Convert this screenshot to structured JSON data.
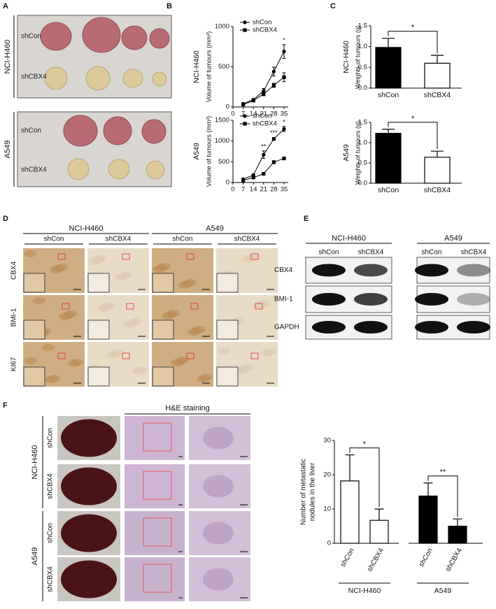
{
  "panels": {
    "A": "A",
    "B": "B",
    "C": "C",
    "D": "D",
    "E": "E",
    "F": "F"
  },
  "panel_a": {
    "rows": [
      {
        "cell": "NCI-H460",
        "groups": [
          "shCon",
          "shCBX4"
        ]
      },
      {
        "cell": "A549",
        "groups": [
          "shCon",
          "shCBX4"
        ]
      }
    ]
  },
  "panel_d": {
    "cells": [
      "NCI-H460",
      "A549"
    ],
    "groups": [
      "shCon",
      "shCBX4",
      "shCon",
      "shCBX4"
    ],
    "markers": [
      "CBX4",
      "BMI-1",
      "KI67"
    ]
  },
  "panel_e": {
    "cells": [
      "NCI-H460",
      "A549"
    ],
    "groups": [
      "shCon",
      "shCBX4",
      "shCon",
      "shCBX4"
    ],
    "proteins": [
      "CBX4",
      "BMI-1",
      "GAPDH"
    ]
  },
  "panel_f": {
    "stain": "H&E staining",
    "rows": [
      {
        "cell": "NCI-H460",
        "groups": [
          "shCon",
          "shCBX4"
        ]
      },
      {
        "cell": "A549",
        "groups": [
          "shCon",
          "shCBX4"
        ]
      }
    ]
  },
  "chart_data": [
    {
      "type": "line",
      "row_label": "NCI-H460",
      "ylabel": "Volume of tumours (mm³)",
      "x": [
        7,
        14,
        21,
        28,
        35
      ],
      "xlim": [
        0,
        35
      ],
      "xticks": [
        0,
        7,
        14,
        21,
        28,
        35
      ],
      "ylim": [
        0,
        1000
      ],
      "yticks": [
        0,
        500,
        1000
      ],
      "series": [
        {
          "name": "shCon",
          "marker": "circle",
          "color": "#000000",
          "values": [
            40,
            90,
            200,
            440,
            690
          ],
          "errors": [
            8,
            12,
            30,
            55,
            85
          ]
        },
        {
          "name": "shCBX4",
          "marker": "square",
          "color": "#000000",
          "values": [
            30,
            80,
            160,
            270,
            370
          ],
          "errors": [
            5,
            10,
            20,
            25,
            55
          ]
        }
      ],
      "annotations": [
        {
          "x": 35,
          "label": "*"
        }
      ]
    },
    {
      "type": "line",
      "row_label": "A549",
      "ylabel": "Volume of tumours (mm³)",
      "x": [
        7,
        14,
        21,
        28,
        35
      ],
      "xlim": [
        0,
        35
      ],
      "xticks": [
        0,
        7,
        14,
        21,
        28,
        35
      ],
      "ylim": [
        0,
        1500
      ],
      "yticks": [
        0,
        500,
        1000,
        1500
      ],
      "series": [
        {
          "name": "shCon",
          "marker": "circle",
          "color": "#000000",
          "values": [
            80,
            180,
            670,
            1050,
            1290
          ],
          "errors": [
            15,
            25,
            90,
            35,
            60
          ]
        },
        {
          "name": "shCBX4",
          "marker": "square",
          "color": "#000000",
          "values": [
            50,
            120,
            210,
            490,
            580
          ],
          "errors": [
            10,
            15,
            25,
            35,
            30
          ]
        }
      ],
      "annotations": [
        {
          "x": 21,
          "label": "**"
        },
        {
          "x": 28,
          "label": "***"
        },
        {
          "x": 35,
          "label": "*"
        }
      ]
    },
    {
      "type": "bar",
      "row_label": "NCI-H460",
      "ylabel": "Weights of tumours (g)",
      "categories": [
        "shCon",
        "shCBX4"
      ],
      "values": [
        0.98,
        0.6
      ],
      "errors": [
        0.22,
        0.19
      ],
      "colors": [
        "#000000",
        "#ffffff"
      ],
      "ylim": [
        0,
        1.5
      ],
      "yticks": [
        {
          "value": 0,
          "label": "0.0"
        },
        0.5,
        {
          "value": 1,
          "label": "1.0"
        },
        1.5
      ],
      "annotations": [
        "*"
      ]
    },
    {
      "type": "bar",
      "row_label": "A549",
      "ylabel": "Weights of tumours (g)",
      "categories": [
        "shCon",
        "shCBX4"
      ],
      "values": [
        1.23,
        0.64
      ],
      "errors": [
        0.1,
        0.15
      ],
      "colors": [
        "#000000",
        "#ffffff"
      ],
      "ylim": [
        0,
        1.5
      ],
      "yticks": [
        {
          "value": 0,
          "label": "0.0"
        },
        0.5,
        {
          "value": 1,
          "label": "1.0"
        },
        1.5
      ],
      "annotations": [
        "*"
      ]
    },
    {
      "type": "bar",
      "ylabel": [
        "Number of metastatic",
        "nodules in the liver"
      ],
      "categories": [
        "shCon",
        "shCBX4",
        "shCon",
        "shCBX4"
      ],
      "groups": [
        "NCI-H460",
        "A549"
      ],
      "values": [
        18.2,
        6.7,
        13.8,
        5.0
      ],
      "errors": [
        7.6,
        3.3,
        3.8,
        2.1
      ],
      "colors": [
        "#ffffff",
        "#ffffff",
        "#000000",
        "#000000"
      ],
      "ylim": [
        0,
        30
      ],
      "yticks": [
        0,
        10,
        20,
        30
      ],
      "annotations": [
        "*",
        "**"
      ]
    }
  ]
}
